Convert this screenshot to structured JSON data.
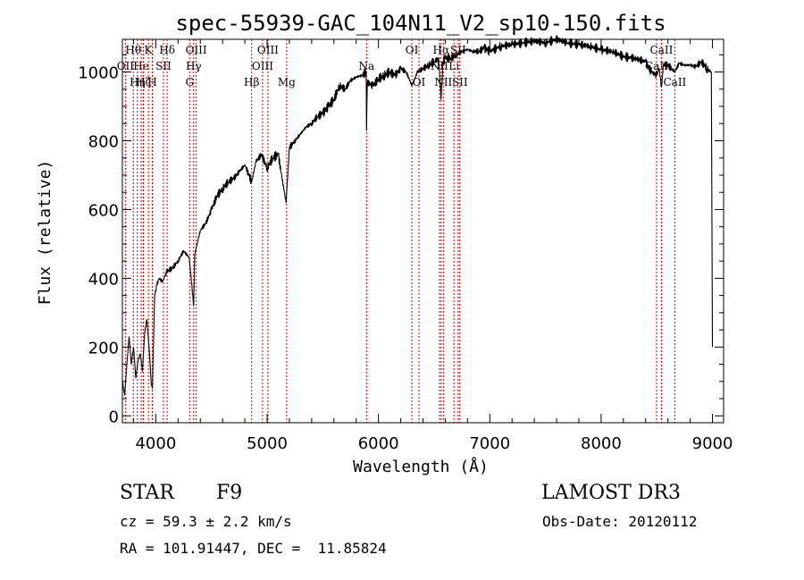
{
  "chart_data": {
    "type": "line",
    "title": "spec-55939-GAC_104N11_V2_sp10-150.fits",
    "xlabel": "Wavelength (Å)",
    "ylabel": "Flux (relative)",
    "xlim": [
      3700,
      9100
    ],
    "ylim": [
      -20,
      1095
    ],
    "xticks": [
      4000,
      5000,
      6000,
      7000,
      8000,
      9000
    ],
    "yticks": [
      0,
      200,
      400,
      600,
      800,
      1000
    ],
    "series": [
      {
        "name": "flux",
        "x": [
          3700,
          3720,
          3740,
          3760,
          3780,
          3800,
          3820,
          3840,
          3860,
          3880,
          3900,
          3920,
          3940,
          3960,
          3970,
          3990,
          4010,
          4030,
          4060,
          4100,
          4150,
          4200,
          4250,
          4300,
          4340,
          4350,
          4400,
          4450,
          4500,
          4550,
          4600,
          4650,
          4700,
          4750,
          4800,
          4861,
          4900,
          4950,
          5000,
          5050,
          5100,
          5170,
          5200,
          5250,
          5300,
          5350,
          5400,
          5450,
          5500,
          5550,
          5600,
          5650,
          5700,
          5750,
          5800,
          5850,
          5890,
          5893,
          5900,
          5950,
          6000,
          6050,
          6100,
          6150,
          6200,
          6250,
          6300,
          6350,
          6400,
          6450,
          6500,
          6540,
          6563,
          6580,
          6600,
          6650,
          6700,
          6750,
          6800,
          6850,
          6900,
          6950,
          7000,
          7100,
          7200,
          7300,
          7400,
          7500,
          7600,
          7700,
          7800,
          7900,
          8000,
          8100,
          8200,
          8300,
          8400,
          8450,
          8498,
          8520,
          8542,
          8560,
          8600,
          8662,
          8700,
          8750,
          8800,
          8850,
          8900,
          8950,
          8990,
          9000
        ],
        "values": [
          100,
          60,
          150,
          230,
          150,
          200,
          110,
          160,
          180,
          130,
          240,
          280,
          200,
          90,
          80,
          350,
          380,
          400,
          390,
          420,
          430,
          450,
          480,
          460,
          320,
          470,
          540,
          560,
          600,
          640,
          660,
          680,
          690,
          710,
          730,
          680,
          740,
          760,
          720,
          750,
          760,
          620,
          780,
          800,
          820,
          840,
          850,
          870,
          880,
          900,
          920,
          960,
          950,
          975,
          985,
          990,
          1000,
          830,
          970,
          960,
          980,
          990,
          1000,
          990,
          1010,
          1000,
          960,
          1000,
          1010,
          1020,
          1030,
          1040,
          920,
          1030,
          1040,
          1040,
          1050,
          1060,
          1065,
          1060,
          1060,
          1070,
          1060,
          1075,
          1080,
          1085,
          1090,
          1085,
          1095,
          1085,
          1080,
          1075,
          1065,
          1060,
          1045,
          1040,
          1030,
          1000,
          990,
          1010,
          960,
          1020,
          1020,
          1000,
          1025,
          1020,
          1020,
          1015,
          1030,
          1010,
          1000,
          200
        ]
      }
    ],
    "lines": [
      {
        "wave": 3727,
        "label": "OII",
        "row": 2
      },
      {
        "wave": 3798,
        "label": "Hθ",
        "row": 1
      },
      {
        "wave": 3835,
        "label": "Hη",
        "row": 3
      },
      {
        "wave": 3869,
        "label": "He",
        "row": 2
      },
      {
        "wave": 3889,
        "label": "Hζ",
        "row": 3
      },
      {
        "wave": 3934,
        "label": "K",
        "row": 1
      },
      {
        "wave": 3969,
        "label": "H",
        "row": 3
      },
      {
        "wave": 4069,
        "label": "SII",
        "row": 2
      },
      {
        "wave": 4102,
        "label": "Hδ",
        "row": 1
      },
      {
        "wave": 4304,
        "label": "G",
        "row": 3
      },
      {
        "wave": 4340,
        "label": "Hγ",
        "row": 2
      },
      {
        "wave": 4363,
        "label": "OIII",
        "row": 1
      },
      {
        "wave": 4861,
        "label": "Hβ",
        "row": 3
      },
      {
        "wave": 4959,
        "label": "OIII",
        "row": 2
      },
      {
        "wave": 5007,
        "label": "OIII",
        "row": 1
      },
      {
        "wave": 5175,
        "label": "Mg",
        "row": 3
      },
      {
        "wave": 5893,
        "label": "Na",
        "row": 2
      },
      {
        "wave": 6300,
        "label": "OI",
        "row": 1
      },
      {
        "wave": 6364,
        "label": "OI",
        "row": 3
      },
      {
        "wave": 6548,
        "label": "NII",
        "row": 2
      },
      {
        "wave": 6563,
        "label": "Hα",
        "row": 1
      },
      {
        "wave": 6583,
        "label": "NII",
        "row": 3
      },
      {
        "wave": 6678,
        "label": "Li",
        "row": 2
      },
      {
        "wave": 6716,
        "label": "SII",
        "row": 1
      },
      {
        "wave": 6731,
        "label": "SII",
        "row": 3
      },
      {
        "wave": 8498,
        "label": "CaII",
        "row": 2
      },
      {
        "wave": 8542,
        "label": "CaII",
        "row": 1
      },
      {
        "wave": 8662,
        "label": "CaII",
        "row": 3
      }
    ]
  },
  "info": {
    "object_class": "STAR",
    "subclass": "F9",
    "survey": "LAMOST DR3",
    "redshift": "cz = 59.3 ± 2.2 km/s",
    "obs_date": "Obs-Date: 20120112",
    "coords": "RA = 101.91447, DEC =  11.85824"
  }
}
